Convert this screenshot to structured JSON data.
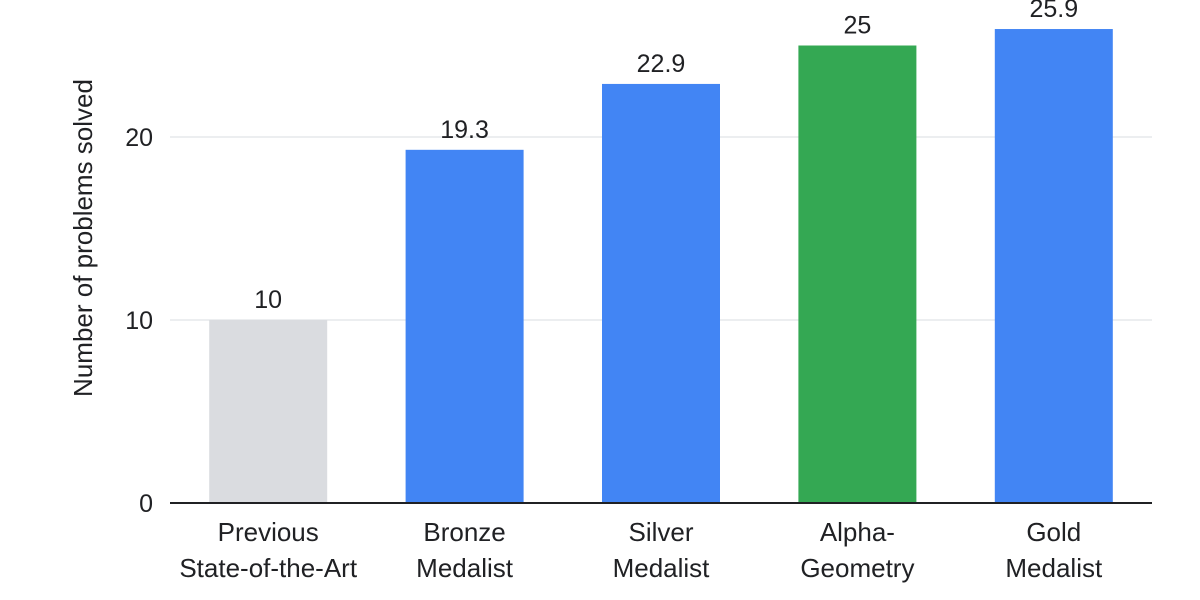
{
  "chart_data": {
    "type": "bar",
    "title": "",
    "xlabel": "",
    "ylabel": "Number of problems solved",
    "ylim": [
      0,
      26.5
    ],
    "yticks": [
      0,
      10,
      20
    ],
    "grid": true,
    "categories": [
      [
        "Previous",
        "State-of-the-Art"
      ],
      [
        "Bronze",
        "Medalist"
      ],
      [
        "Silver",
        "Medalist"
      ],
      [
        "Alpha-",
        "Geometry"
      ],
      [
        "Gold",
        "Medalist"
      ]
    ],
    "values": [
      10,
      19.3,
      22.9,
      25,
      25.9
    ],
    "value_labels": [
      "10",
      "19.3",
      "22.9",
      "25",
      "25.9"
    ],
    "colors": [
      "#dadce0",
      "#4285f4",
      "#4285f4",
      "#34a853",
      "#4285f4"
    ]
  }
}
